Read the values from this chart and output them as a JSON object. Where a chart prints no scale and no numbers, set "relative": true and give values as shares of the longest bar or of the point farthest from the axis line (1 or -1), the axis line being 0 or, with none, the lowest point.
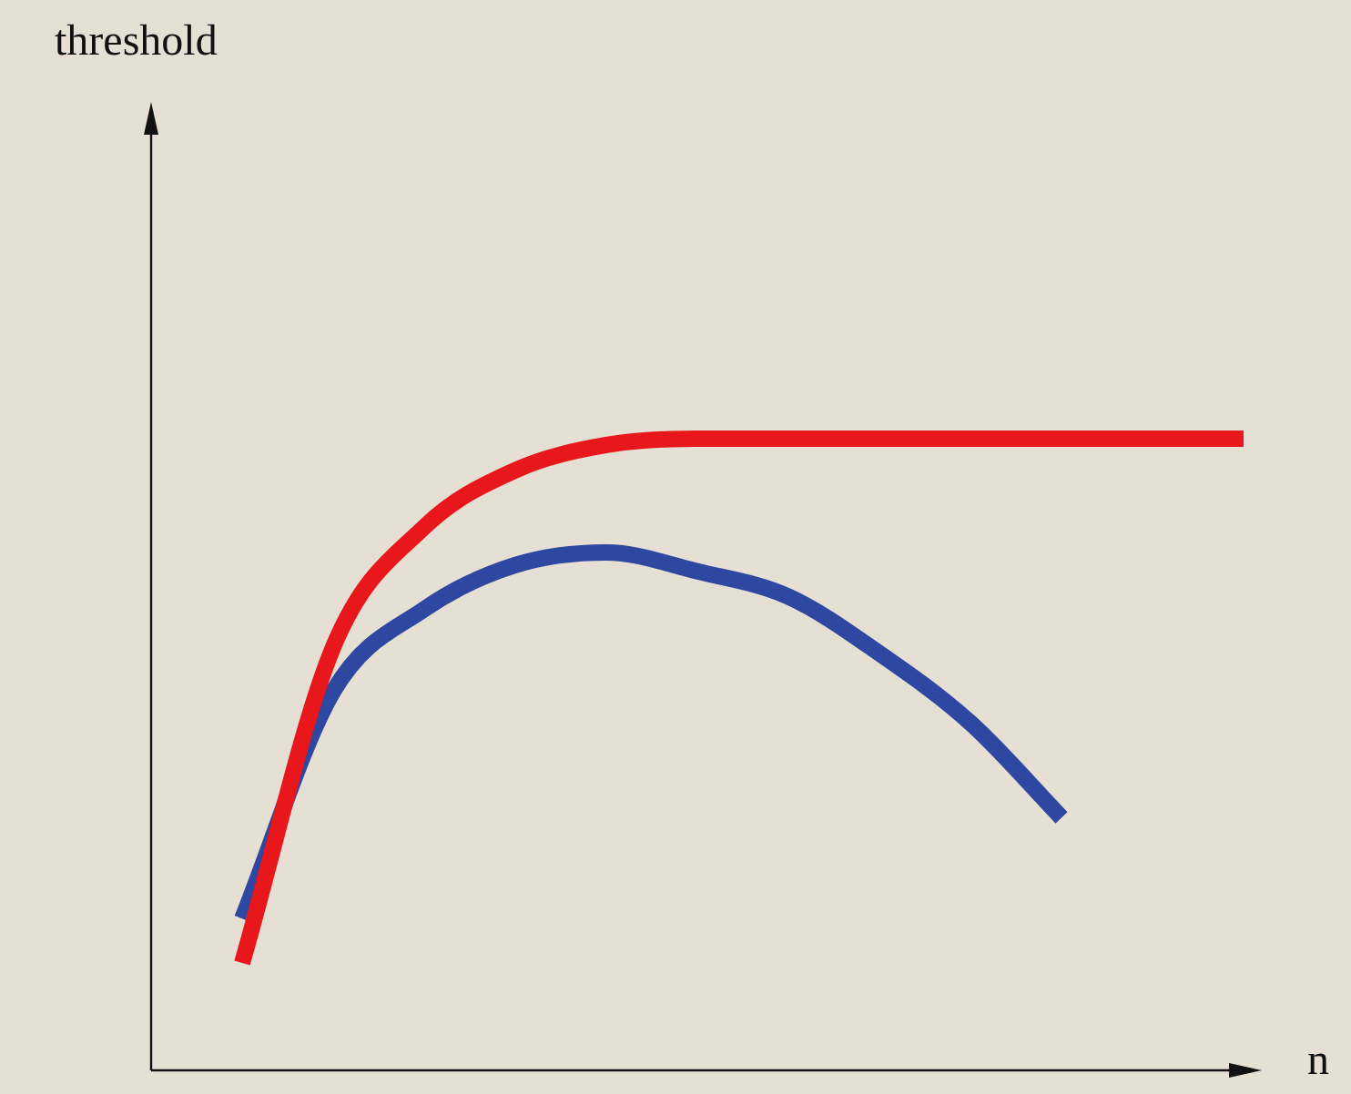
{
  "chart_data": {
    "type": "line",
    "relative": true,
    "xlabel": "n",
    "annotations": [
      "threshold"
    ],
    "categories": [
      null,
      null,
      null,
      null,
      null,
      null,
      null,
      null,
      null,
      null,
      null,
      null,
      null
    ],
    "series": [
      {
        "color": "#e8171c",
        "values": [
          null,
          0.17,
          0.67,
          0.86,
          0.95,
          0.99,
          1,
          1,
          1,
          1,
          1,
          1,
          1
        ]
      },
      {
        "color": "#2e47a0",
        "values": [
          null,
          0.24,
          0.6,
          0.73,
          0.8,
          0.82,
          0.79,
          0.75,
          0.66,
          0.55,
          0.4,
          null,
          null
        ]
      }
    ]
  }
}
